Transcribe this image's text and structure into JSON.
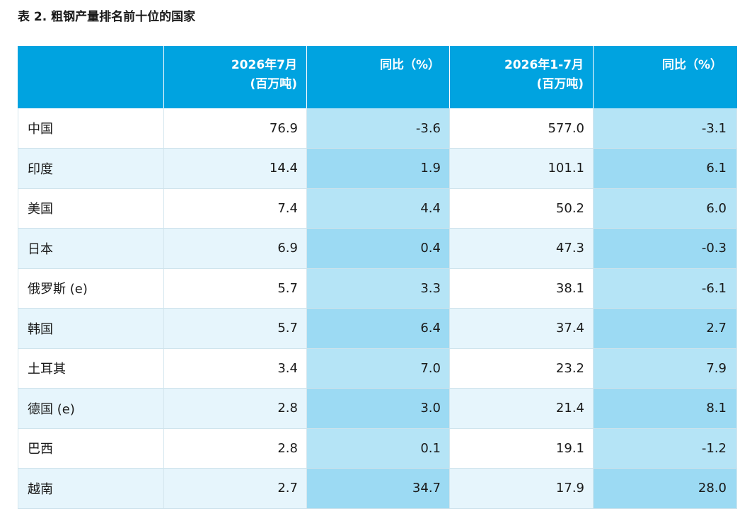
{
  "title": "表 2. 粗钢产量排名前十位的国家",
  "headers": {
    "country": "",
    "month_line1": "2026年7月",
    "month_line2": "(百万吨)",
    "yoy1": "同比（%）",
    "ytd_line1": "2026年1-7月",
    "ytd_line2": "(百万吨)",
    "yoy2": "同比（%）"
  },
  "rows": [
    {
      "country": "中国",
      "month": "76.9",
      "yoy_month": "-3.6",
      "ytd": "577.0",
      "yoy_ytd": "-3.1"
    },
    {
      "country": "印度",
      "month": "14.4",
      "yoy_month": "1.9",
      "ytd": "101.1",
      "yoy_ytd": "6.1"
    },
    {
      "country": "美国",
      "month": "7.4",
      "yoy_month": "4.4",
      "ytd": "50.2",
      "yoy_ytd": "6.0"
    },
    {
      "country": "日本",
      "month": "6.9",
      "yoy_month": "0.4",
      "ytd": "47.3",
      "yoy_ytd": "-0.3"
    },
    {
      "country": "俄罗斯 (e)",
      "month": "5.7",
      "yoy_month": "3.3",
      "ytd": "38.1",
      "yoy_ytd": "-6.1"
    },
    {
      "country": "韩国",
      "month": "5.7",
      "yoy_month": "6.4",
      "ytd": "37.4",
      "yoy_ytd": "2.7"
    },
    {
      "country": "土耳其",
      "month": "3.4",
      "yoy_month": "7.0",
      "ytd": "23.2",
      "yoy_ytd": "7.9"
    },
    {
      "country": "德国 (e)",
      "month": "2.8",
      "yoy_month": "3.0",
      "ytd": "21.4",
      "yoy_ytd": "8.1"
    },
    {
      "country": "巴西",
      "month": "2.8",
      "yoy_month": "0.1",
      "ytd": "19.1",
      "yoy_ytd": "-1.2"
    },
    {
      "country": "越南",
      "month": "2.7",
      "yoy_month": "34.7",
      "ytd": "17.9",
      "yoy_ytd": "28.0"
    }
  ],
  "colors": {
    "header_bg": "#00a3e0",
    "row_plain_odd": "#ffffff",
    "row_plain_even": "#e6f5fc",
    "row_pct_odd": "#b5e4f6",
    "row_pct_even": "#9cdaf3"
  }
}
